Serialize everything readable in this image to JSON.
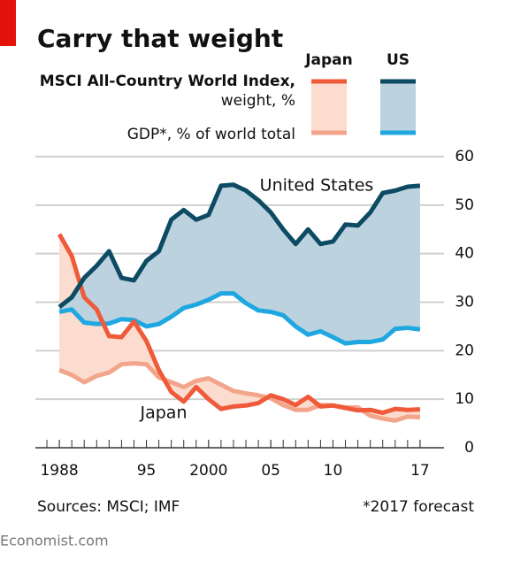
{
  "chart_data": {
    "type": "line",
    "title": "Carry that weight",
    "legend": {
      "columns": [
        "Japan",
        "US"
      ],
      "rows": [
        [
          "MSCI All-Country World Index,",
          "weight, %"
        ],
        [
          "GDP*, % of world total"
        ]
      ]
    },
    "x": [
      1988,
      1989,
      1990,
      1991,
      1992,
      1993,
      1994,
      1995,
      1996,
      1997,
      1998,
      1999,
      2000,
      2001,
      2002,
      2003,
      2004,
      2005,
      2006,
      2007,
      2008,
      2009,
      2010,
      2011,
      2012,
      2013,
      2014,
      2015,
      2016,
      2017
    ],
    "series": [
      {
        "color": "#ef5a3a",
        "fill": "#fbdccf",
        "values": [
          44,
          39.5,
          31,
          28.5,
          23,
          22.8,
          26,
          22,
          16,
          11.5,
          9.5,
          12.5,
          10,
          8,
          8.5,
          8.7,
          9.2,
          10.8,
          10,
          8.8,
          10.5,
          8.5,
          8.7,
          8.2,
          7.7,
          7.8,
          7.2,
          8,
          7.8,
          7.9
        ]
      },
      {
        "color": "#f2a58a",
        "values": [
          16,
          15,
          13.5,
          14.8,
          15.5,
          17.2,
          17.4,
          17.2,
          14.5,
          13.5,
          12.5,
          13.8,
          14.3,
          13,
          11.7,
          11.2,
          10.8,
          10.2,
          8.8,
          7.8,
          7.8,
          8.8,
          8.7,
          8.3,
          8.3,
          6.6,
          6,
          5.6,
          6.4,
          6.3
        ]
      },
      {
        "color": "#0d4a63",
        "fill": "#bcd2de",
        "values": [
          29,
          31,
          35,
          37.5,
          40.5,
          35,
          34.5,
          38.5,
          40.5,
          47,
          49,
          47,
          48,
          54,
          54.2,
          53,
          51,
          48.5,
          45,
          42,
          45,
          42,
          42.5,
          46,
          45.8,
          48.5,
          52.5,
          53,
          53.8,
          54
        ]
      },
      {
        "color": "#1ea7e1",
        "values": [
          28,
          28.5,
          25.8,
          25.5,
          25.6,
          26.5,
          26.3,
          25,
          25.5,
          27,
          28.8,
          29.5,
          30.5,
          31.8,
          31.8,
          29.8,
          28.3,
          28,
          27.3,
          25,
          23.3,
          24,
          22.8,
          21.5,
          21.8,
          21.8,
          22.3,
          24.5,
          24.7,
          24.4
        ]
      }
    ],
    "annotations": [
      "United States",
      "Japan"
    ],
    "xlim": [
      1986.5,
      2018.5
    ],
    "xticks": [
      1988,
      {
        "value": 1995,
        "label": "95"
      },
      2000,
      {
        "value": 2005,
        "label": "05"
      },
      {
        "value": 2010,
        "label": "10"
      },
      {
        "value": 2017,
        "label": "17"
      }
    ],
    "ylim": [
      0,
      60
    ],
    "yticks": [
      0,
      10,
      20,
      30,
      40,
      50,
      60
    ],
    "grid": true,
    "source": "Sources: MSCI; IMF",
    "footnote": "*2017 forecast",
    "credit": "Economist.com"
  }
}
